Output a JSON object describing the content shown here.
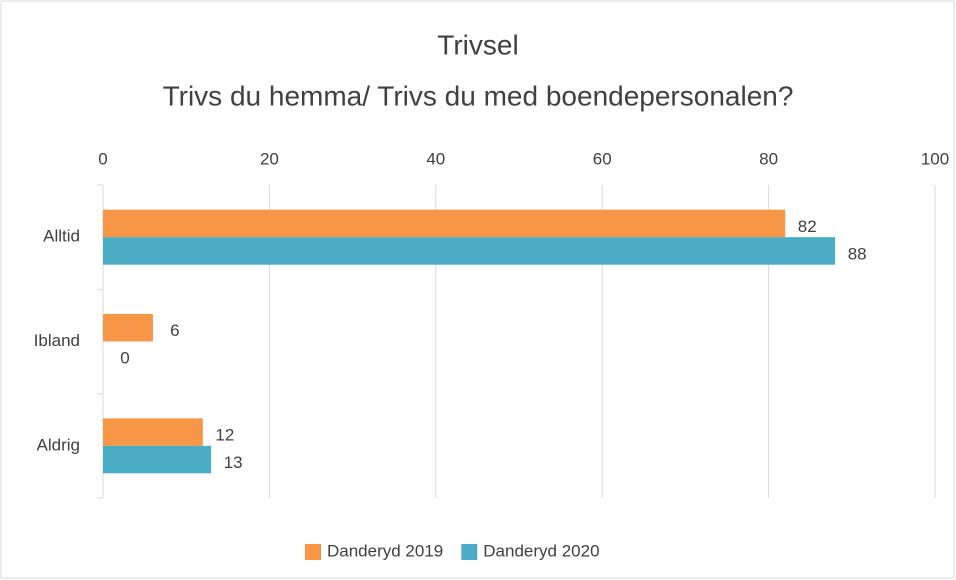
{
  "chart_data": {
    "type": "bar",
    "orientation": "horizontal",
    "title": "Trivsel",
    "subtitle": "Trivs du hemma/ Trivs du med boendepersonalen?",
    "categories": [
      "Alltid",
      "Ibland",
      "Aldrig"
    ],
    "series": [
      {
        "name": "Danderyd 2019",
        "color": "#f79646",
        "values": [
          82,
          6,
          12
        ]
      },
      {
        "name": "Danderyd 2020",
        "color": "#4bacc6",
        "values": [
          88,
          0,
          13
        ]
      }
    ],
    "xlim": [
      0,
      100
    ],
    "xticks": [
      0,
      20,
      40,
      60,
      80,
      100
    ],
    "grid": true,
    "legend": "bottom"
  }
}
